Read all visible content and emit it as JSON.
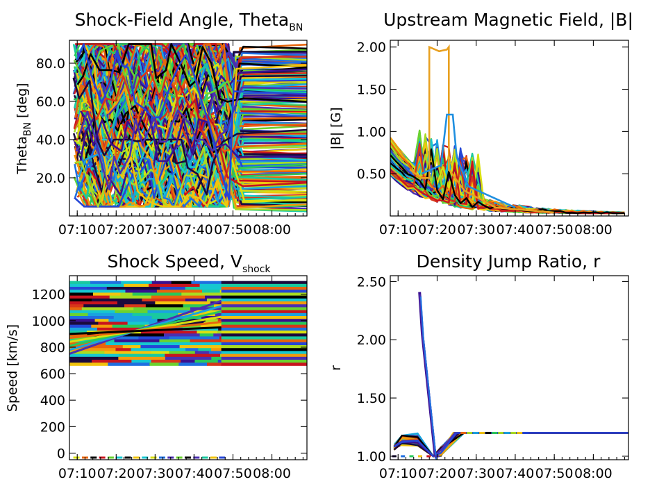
{
  "chart_data": [
    {
      "id": "theta",
      "type": "line",
      "title": "Shock-Field Angle, Theta",
      "title_sub": "BN",
      "xlabel": "",
      "ylabel": "Theta",
      "ylabel_sub": "BN",
      "ylabel_suffix": " [deg]",
      "x_ticks": [
        "07:10",
        "07:20",
        "07:30",
        "07:40",
        "07:50",
        "08:00"
      ],
      "x_tick_minutes": [
        10,
        20,
        30,
        40,
        50,
        60
      ],
      "xlim_minutes": [
        8,
        69
      ],
      "y_ticks": [
        20,
        40,
        60,
        80
      ],
      "y_tick_labels": [
        "20.0",
        "40.0",
        "60.0",
        "80.0"
      ],
      "ylim": [
        0,
        92
      ],
      "series_count": 220,
      "description_values": {
        "early_range_deg": [
          10,
          90
        ],
        "late_range_deg": [
          5,
          90
        ]
      }
    },
    {
      "id": "bfield",
      "type": "line",
      "title": "Upstream Magnetic Field, |B|",
      "xlabel": "",
      "ylabel": "|B| [G]",
      "x_ticks": [
        "07:10",
        "07:20",
        "07:30",
        "07:40",
        "07:50",
        "08:00"
      ],
      "x_tick_minutes": [
        10,
        20,
        30,
        40,
        50,
        60
      ],
      "xlim_minutes": [
        8,
        69
      ],
      "y_ticks": [
        0.5,
        1.0,
        1.5,
        2.0
      ],
      "y_tick_labels": [
        "0.50",
        "1.00",
        "1.50",
        "2.00"
      ],
      "ylim": [
        0,
        2.08
      ],
      "series_count": 90,
      "peak_value": 2.0,
      "peak_minutes": [
        18,
        23
      ]
    },
    {
      "id": "speed",
      "type": "line",
      "title": "Shock Speed, V",
      "title_sub": "shock",
      "xlabel": "",
      "ylabel": "Speed [km/s]",
      "x_ticks": [
        "07:10",
        "07:20",
        "07:30",
        "07:40",
        "07:50",
        "08:00"
      ],
      "x_tick_minutes": [
        10,
        20,
        30,
        40,
        50,
        60
      ],
      "xlim_minutes": [
        8,
        69
      ],
      "y_ticks": [
        0,
        200,
        400,
        600,
        800,
        1000,
        1200
      ],
      "y_tick_labels": [
        "0",
        "200",
        "400",
        "600",
        "800",
        "1000",
        "1200"
      ],
      "ylim": [
        -50,
        1340
      ],
      "series_count": 150,
      "band_range_kms": [
        650,
        1300
      ],
      "change_minute": 47
    },
    {
      "id": "ratio",
      "type": "line",
      "title": "Density Jump Ratio, r",
      "xlabel": "",
      "ylabel": "r",
      "x_ticks": [
        "07:10",
        "07:20",
        "07:30",
        "07:40",
        "07:50",
        "08:00"
      ],
      "x_tick_minutes": [
        10,
        20,
        30,
        40,
        50,
        60
      ],
      "xlim_minutes": [
        8,
        69
      ],
      "y_ticks": [
        1.0,
        1.5,
        2.0,
        2.5
      ],
      "y_tick_labels": [
        "1.00",
        "1.50",
        "2.00",
        "2.50"
      ],
      "ylim": [
        0.97,
        2.55
      ],
      "series_count": 40,
      "peak_value": 2.41,
      "plateau_value": 1.2
    }
  ],
  "colors": {
    "palette": [
      "#1a0a3c",
      "#3a0f8f",
      "#4b2fb0",
      "#2446d6",
      "#1f6fe0",
      "#1aa3df",
      "#16c7d0",
      "#19c9a0",
      "#2ac85a",
      "#6ad230",
      "#a8dc22",
      "#d8e010",
      "#f2c40e",
      "#f29a0c",
      "#e8650c",
      "#d8361a",
      "#c8141e",
      "#000000"
    ]
  }
}
